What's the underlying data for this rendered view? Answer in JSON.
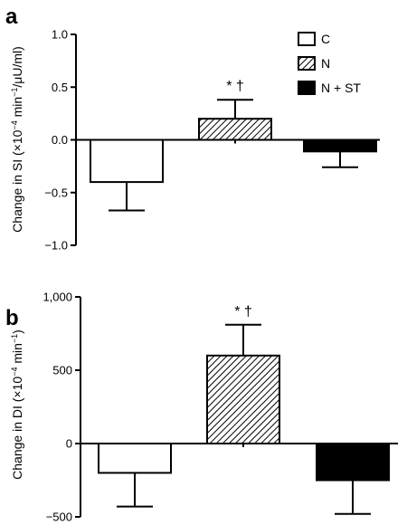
{
  "chart_data": [
    {
      "type": "bar",
      "panel": "a",
      "ylabel": "Change in SI (×10",
      "ylabel_parts": {
        "base": "Change in SI (×10",
        "exp1": "−4",
        "mid": " min",
        "exp2": "−1",
        "tail": "/μU/ml)"
      },
      "ylim": [
        -1.0,
        1.0
      ],
      "yticks": [
        -1.0,
        -0.5,
        0.0,
        0.5,
        1.0
      ],
      "ytick_labels": [
        "−1.0",
        "−0.5",
        "0.0",
        "0.5",
        "1.0"
      ],
      "categories": [
        "C",
        "N",
        "N + ST"
      ],
      "values": [
        -0.4,
        0.2,
        -0.11
      ],
      "errors": [
        0.27,
        0.18,
        0.15
      ],
      "annotations": [
        "* †"
      ],
      "annotation_category": "N",
      "legend": {
        "placement": "top-right",
        "entries": [
          {
            "label": "C",
            "pattern": "white"
          },
          {
            "label": "N",
            "pattern": "hatched"
          },
          {
            "label": "N + ST",
            "pattern": "black"
          }
        ]
      }
    },
    {
      "type": "bar",
      "panel": "b",
      "ylabel_parts": {
        "base": "Change in DI (×10",
        "exp1": "−4",
        "mid": " min",
        "exp2": "−1",
        "tail": ")"
      },
      "ylim": [
        -500,
        1000
      ],
      "yticks": [
        -500,
        0,
        500,
        1000
      ],
      "ytick_labels": [
        "−500",
        "0",
        "500",
        "1,000"
      ],
      "categories": [
        "C",
        "N",
        "N + ST"
      ],
      "values": [
        -200,
        600,
        -250
      ],
      "errors": [
        230,
        210,
        230
      ],
      "annotations": [
        "* †"
      ],
      "annotation_category": "N"
    }
  ],
  "colors": {
    "white": "#ffffff",
    "black": "#000000",
    "stroke": "#000000"
  }
}
